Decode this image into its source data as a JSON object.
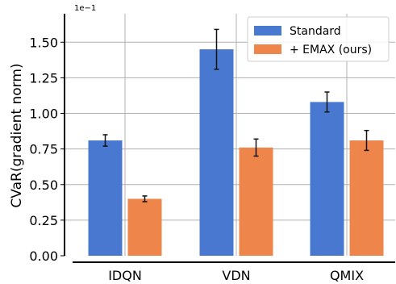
{
  "chart_data": {
    "type": "bar",
    "title": "",
    "xlabel": "",
    "ylabel": "CVaR(gradient norm)",
    "y_scale_label": "1e−1",
    "ylim": [
      0,
      1.7
    ],
    "yticks": [
      "0.00",
      "0.25",
      "0.50",
      "0.75",
      "1.00",
      "1.25",
      "1.50"
    ],
    "categories": [
      "IDQN",
      "VDN",
      "QMIX"
    ],
    "grid": true,
    "legend_position": "top-right",
    "series": [
      {
        "name": "Standard",
        "color": "#4878d0",
        "values": [
          0.81,
          1.45,
          1.08
        ],
        "errors": [
          0.04,
          0.14,
          0.07
        ]
      },
      {
        "name": "+ EMAX (ours)",
        "color": "#ee854a",
        "values": [
          0.4,
          0.76,
          0.81
        ],
        "errors": [
          0.02,
          0.06,
          0.07
        ]
      }
    ]
  }
}
